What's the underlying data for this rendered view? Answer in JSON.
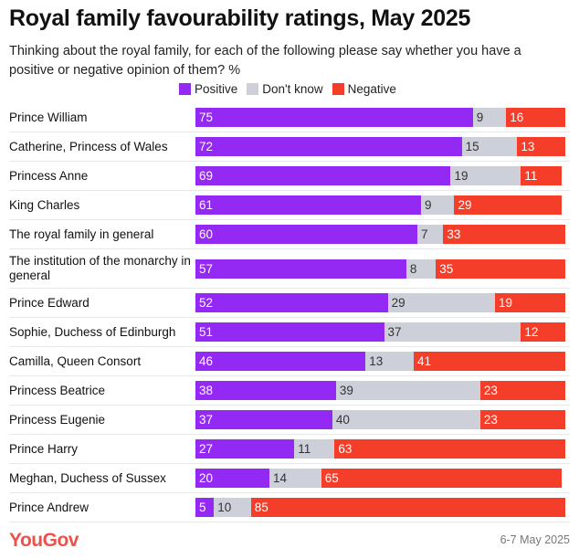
{
  "chart_data": {
    "type": "bar",
    "stacked": true,
    "orientation": "horizontal",
    "title": "Royal family favourability ratings, May 2025",
    "subtitle": "Thinking about the royal family, for each of the following please say whether you have a positive or negative opinion of them? %",
    "legend_position": "top",
    "categories": [
      "Prince William",
      "Catherine, Princess of Wales",
      "Princess Anne",
      "King Charles",
      "The royal family in general",
      "The institution of the monarchy in general",
      "Prince Edward",
      "Sophie, Duchess of Edinburgh",
      "Camilla, Queen Consort",
      "Princess Beatrice",
      "Princess Eugenie",
      "Prince Harry",
      "Meghan, Duchess of Sussex",
      "Prince Andrew"
    ],
    "series": [
      {
        "name": "Positive",
        "color": "#9329f2",
        "values": [
          75,
          72,
          69,
          61,
          60,
          57,
          52,
          51,
          46,
          38,
          37,
          27,
          20,
          5
        ]
      },
      {
        "name": "Don't know",
        "color": "#cdd0d8",
        "values": [
          9,
          15,
          19,
          9,
          7,
          8,
          29,
          37,
          13,
          39,
          40,
          11,
          14,
          10
        ]
      },
      {
        "name": "Negative",
        "color": "#f53e2a",
        "values": [
          16,
          13,
          11,
          29,
          33,
          35,
          19,
          12,
          41,
          23,
          23,
          63,
          65,
          85
        ]
      }
    ]
  },
  "footer": {
    "brand": "YouGov",
    "date": "6-7 May 2025"
  }
}
